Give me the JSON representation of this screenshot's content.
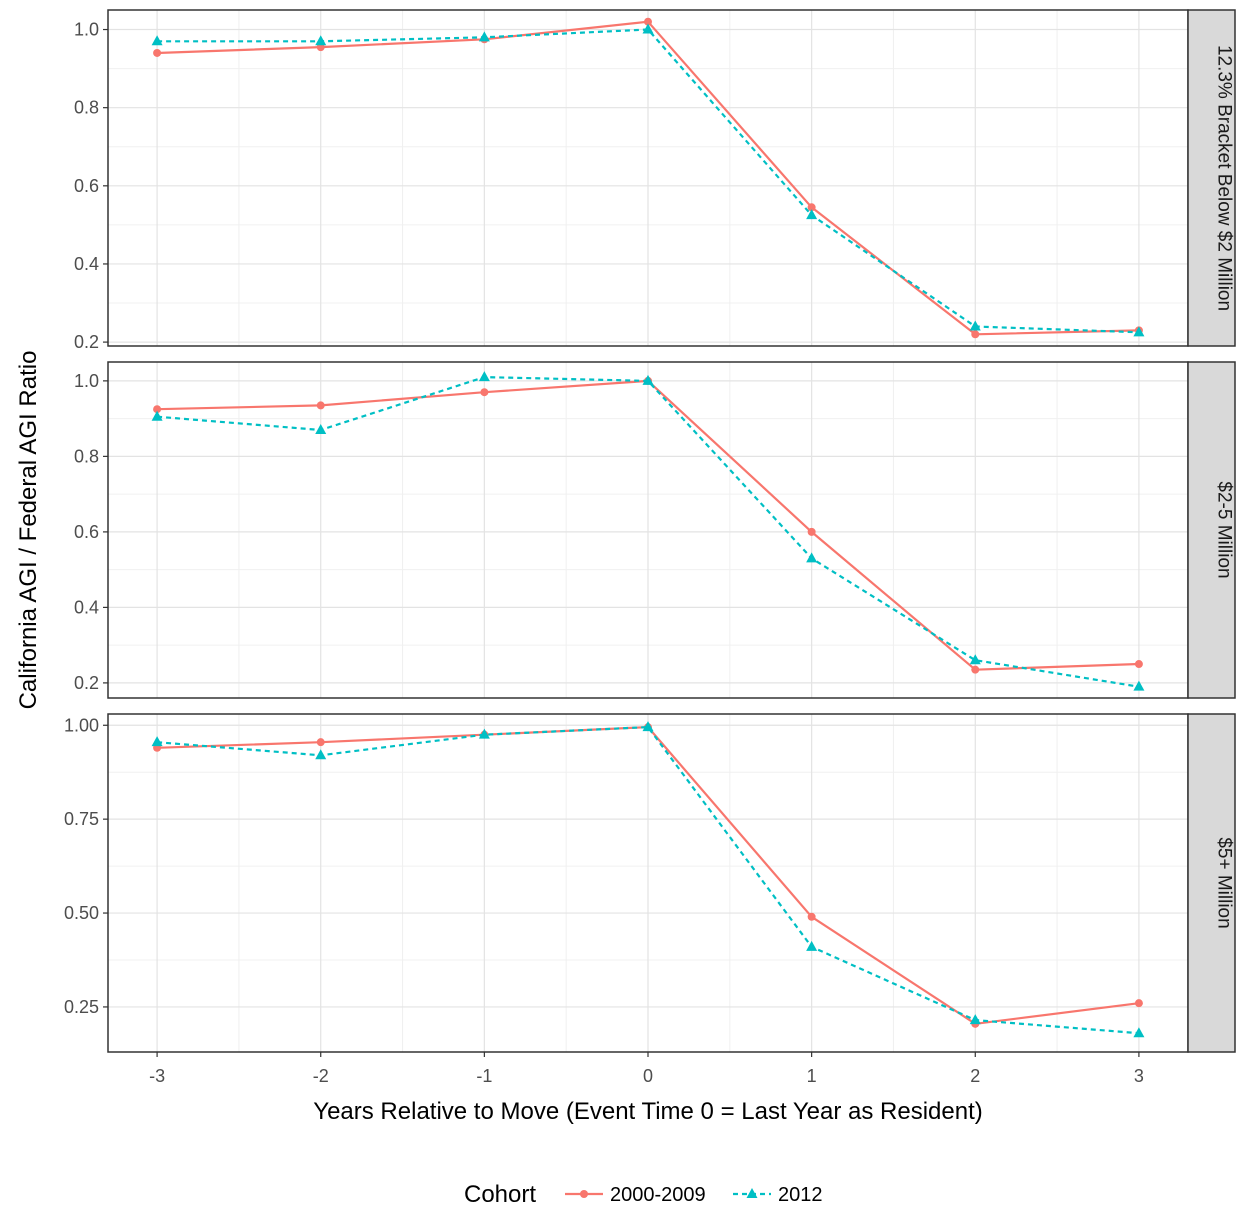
{
  "chart_data": {
    "type": "line",
    "xlabel": "Years Relative to Move (Event Time 0 = Last Year as Resident)",
    "ylabel": "California AGI / Federal AGI Ratio",
    "x_ticks": [
      "-3",
      "-2",
      "-1",
      "0",
      "1",
      "2",
      "3"
    ],
    "x": [
      -3,
      -2,
      -1,
      0,
      1,
      2,
      3
    ],
    "xlim": [
      -3.3,
      3.3
    ],
    "grid": true,
    "legend": {
      "title": "Cohort",
      "position": "bottom",
      "entries": [
        "2000-2009",
        "2012"
      ]
    },
    "series_styles": [
      {
        "name": "2000-2009",
        "color": "#F8766D",
        "line": "solid",
        "marker": "circle"
      },
      {
        "name": "2012",
        "color": "#00BFC4",
        "line": "dashed",
        "marker": "triangle"
      }
    ],
    "panels": [
      {
        "strip": "12.3% Bracket Below $2 Million",
        "ylim": [
          0.19,
          1.05
        ],
        "y_ticks": [
          0.2,
          0.4,
          0.6,
          0.8,
          1.0
        ],
        "y_tick_labels": [
          "0.2",
          "0.4",
          "0.6",
          "0.8",
          "1.0"
        ],
        "series": [
          {
            "name": "2000-2009",
            "values": [
              0.94,
              0.955,
              0.975,
              1.02,
              0.545,
              0.22,
              0.23
            ]
          },
          {
            "name": "2012",
            "values": [
              0.97,
              0.97,
              0.98,
              1.0,
              0.525,
              0.24,
              0.225
            ]
          }
        ]
      },
      {
        "strip": "$2-5 Million",
        "ylim": [
          0.16,
          1.05
        ],
        "y_ticks": [
          0.2,
          0.4,
          0.6,
          0.8,
          1.0
        ],
        "y_tick_labels": [
          "0.2",
          "0.4",
          "0.6",
          "0.8",
          "1.0"
        ],
        "series": [
          {
            "name": "2000-2009",
            "values": [
              0.925,
              0.935,
              0.97,
              1.0,
              0.6,
              0.235,
              0.25
            ]
          },
          {
            "name": "2012",
            "values": [
              0.905,
              0.87,
              1.01,
              1.0,
              0.53,
              0.26,
              0.19
            ]
          }
        ]
      },
      {
        "strip": "$5+ Million",
        "ylim": [
          0.13,
          1.03
        ],
        "y_ticks": [
          0.25,
          0.5,
          0.75,
          1.0
        ],
        "y_tick_labels": [
          "0.25",
          "0.50",
          "0.75",
          "1.00"
        ],
        "series": [
          {
            "name": "2000-2009",
            "values": [
              0.94,
              0.955,
              0.975,
              0.995,
              0.49,
              0.205,
              0.26
            ]
          },
          {
            "name": "2012",
            "values": [
              0.955,
              0.92,
              0.975,
              0.995,
              0.41,
              0.215,
              0.18
            ]
          }
        ]
      }
    ]
  }
}
